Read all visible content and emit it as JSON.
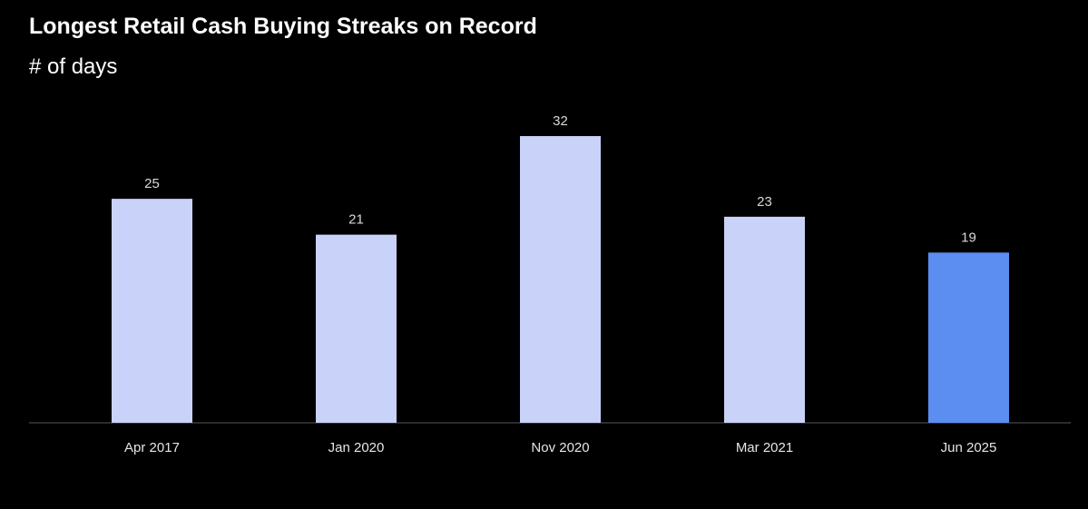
{
  "title": "Longest Retail Cash Buying Streaks on Record",
  "subtitle": "# of days",
  "chart_data": {
    "type": "bar",
    "categories": [
      "Apr 2017",
      "Jan 2020",
      "Nov 2020",
      "Mar 2021",
      "Jun 2025"
    ],
    "values": [
      25,
      21,
      32,
      23,
      19
    ],
    "data_labels": [
      "25",
      "21",
      "32",
      "23",
      "19"
    ],
    "title": "Longest Retail Cash Buying Streaks on Record",
    "subtitle": "# of days",
    "xlabel": "",
    "ylabel": "",
    "ylim": [
      0,
      32
    ],
    "grid": false,
    "legend": "none",
    "colors": {
      "default_bar": "#c9d2f8",
      "highlight_bar": "#5b8ef0",
      "axis": "#3a3a3a",
      "background": "#000000"
    },
    "highlight_index": 4
  }
}
